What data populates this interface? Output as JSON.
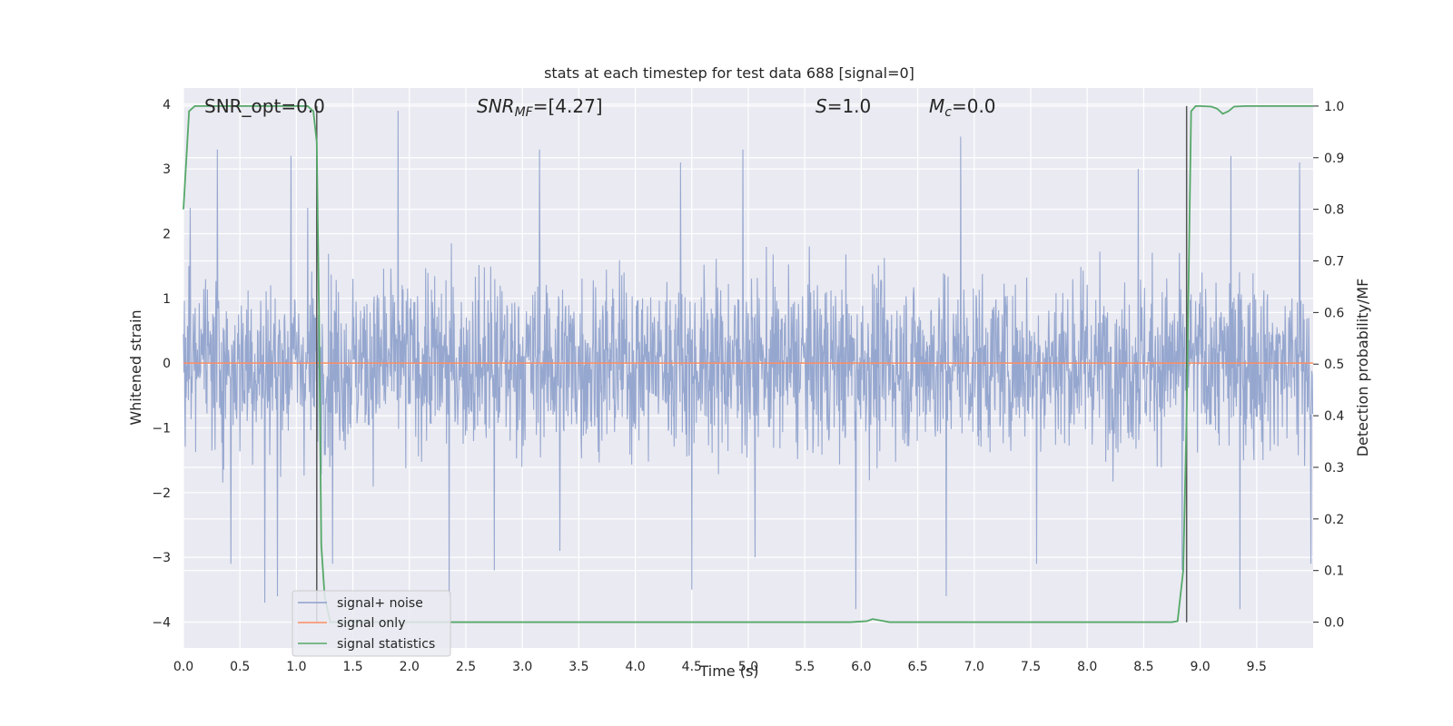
{
  "chart_data": {
    "type": "line",
    "title": "stats at each timestep for test data 688 [signal=0]",
    "xlabel": "Time (s)",
    "ylabel_left": "Whitened strain",
    "ylabel_right": "Detection probability/MF",
    "xlim": [
      0.0,
      10.0
    ],
    "ylim_left": [
      -4.4,
      4.25
    ],
    "ylim_right": [
      -0.05,
      1.035
    ],
    "x_ticks": [
      "0.0",
      "0.5",
      "1.0",
      "1.5",
      "2.0",
      "2.5",
      "3.0",
      "3.5",
      "4.0",
      "4.5",
      "5.0",
      "5.5",
      "6.0",
      "6.5",
      "7.0",
      "7.5",
      "8.0",
      "8.5",
      "9.0",
      "9.5"
    ],
    "y_ticks_left": [
      "−4",
      "−3",
      "−2",
      "−1",
      "0",
      "1",
      "2",
      "3",
      "4"
    ],
    "y_ticks_right": [
      "0.0",
      "0.1",
      "0.2",
      "0.3",
      "0.4",
      "0.5",
      "0.6",
      "0.7",
      "0.8",
      "0.9",
      "1.0"
    ],
    "grid": true,
    "legend_position": "lower-left",
    "annotations": {
      "snr_opt": "SNR_opt=0.0",
      "snr_mf_prefix": "SNR",
      "snr_mf_sub": "MF",
      "snr_mf_value": "=[4.27]",
      "s_prefix": "S",
      "s_value": "=1.0",
      "mc_prefix": "M",
      "mc_sub": "c",
      "mc_value": "=0.0"
    },
    "vertical_markers_x": [
      1.18,
      8.88
    ],
    "series": [
      {
        "name": "signal+ noise",
        "axis": "left",
        "color": "#8da0cb",
        "description_values": "dense whitened noise, mostly within ±2, peaks near ±3.9",
        "peaks": [
          [
            0.06,
            2.4
          ],
          [
            0.3,
            3.3
          ],
          [
            0.42,
            -3.1
          ],
          [
            0.72,
            -3.7
          ],
          [
            0.83,
            -3.6
          ],
          [
            0.95,
            3.2
          ],
          [
            1.1,
            2.4
          ],
          [
            1.32,
            -3.1
          ],
          [
            1.9,
            3.9
          ],
          [
            2.35,
            -3.6
          ],
          [
            2.75,
            -3.2
          ],
          [
            3.15,
            3.3
          ],
          [
            3.33,
            -2.9
          ],
          [
            4.4,
            3.1
          ],
          [
            4.5,
            -3.5
          ],
          [
            4.95,
            3.3
          ],
          [
            5.06,
            -3.0
          ],
          [
            5.95,
            -3.8
          ],
          [
            6.75,
            -3.6
          ],
          [
            6.88,
            3.5
          ],
          [
            7.55,
            -3.1
          ],
          [
            8.45,
            3.0
          ],
          [
            8.84,
            -3.2
          ],
          [
            9.27,
            3.2
          ],
          [
            9.35,
            -3.8
          ],
          [
            9.88,
            3.1
          ],
          [
            9.98,
            -3.1
          ]
        ]
      },
      {
        "name": "signal only",
        "axis": "left",
        "color": "#fc8d62",
        "x": [
          0.0,
          10.0
        ],
        "y": [
          0.0,
          0.0
        ]
      },
      {
        "name": "signal statistics",
        "axis": "right",
        "color": "#55a868",
        "x": [
          0.0,
          0.05,
          0.1,
          0.2,
          0.5,
          1.0,
          1.1,
          1.15,
          1.18,
          1.2,
          1.22,
          1.25,
          1.3,
          1.5,
          2.0,
          3.0,
          4.0,
          5.0,
          5.9,
          6.05,
          6.1,
          6.15,
          6.25,
          6.5,
          7.0,
          8.0,
          8.5,
          8.75,
          8.8,
          8.85,
          8.88,
          8.92,
          8.96,
          9.0,
          9.1,
          9.15,
          9.2,
          9.25,
          9.3,
          9.4,
          9.5,
          9.7,
          10.0
        ],
        "y": [
          0.8,
          0.99,
          1.0,
          1.0,
          1.0,
          1.0,
          1.0,
          0.99,
          0.93,
          0.6,
          0.15,
          0.05,
          0.0,
          0.0,
          0.0,
          0.0,
          0.0,
          0.0,
          0.0,
          0.002,
          0.006,
          0.004,
          0.0,
          0.0,
          0.0,
          0.0,
          0.0,
          0.0,
          0.002,
          0.1,
          0.4,
          0.99,
          1.0,
          1.0,
          0.999,
          0.995,
          0.985,
          0.99,
          0.999,
          1.0,
          1.0,
          1.0,
          1.0
        ]
      }
    ]
  }
}
